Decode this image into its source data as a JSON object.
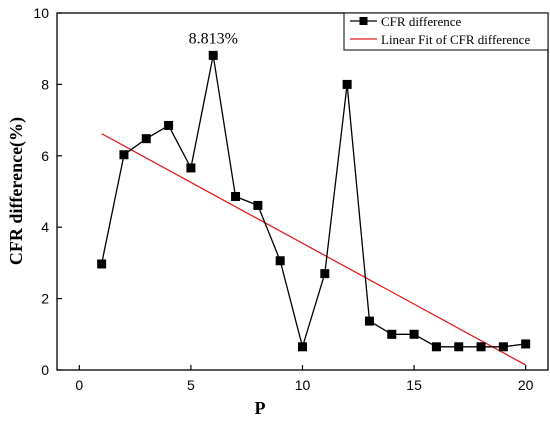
{
  "chart_data": {
    "type": "line",
    "xlabel": "P",
    "ylabel": "CFR difference(%)",
    "xlim": [
      -1,
      21
    ],
    "ylim": [
      0,
      10
    ],
    "xticks": [
      0,
      5,
      10,
      15,
      20
    ],
    "yticks": [
      0,
      2,
      4,
      6,
      8,
      10
    ],
    "x_tick_labels": [
      "0",
      "5",
      "10",
      "15",
      "20"
    ],
    "y_tick_labels": [
      "0",
      "2",
      "4",
      "6",
      "8",
      "10"
    ],
    "grid": false,
    "legend_position": "top-right",
    "series": [
      {
        "name": "CFR difference",
        "type": "line-marker",
        "color": "#000000",
        "marker": "square",
        "x": [
          1,
          2,
          3,
          4,
          5,
          6,
          7,
          8,
          9,
          10,
          11,
          12,
          13,
          14,
          15,
          16,
          17,
          18,
          19,
          20
        ],
        "y": [
          2.97,
          6.03,
          6.48,
          6.85,
          5.66,
          8.813,
          4.86,
          4.61,
          3.06,
          0.65,
          2.7,
          8.0,
          1.37,
          1.0,
          1.0,
          0.65,
          0.65,
          0.65,
          0.65,
          0.73
        ]
      },
      {
        "name": "Linear Fit of CFR difference",
        "type": "fit-line",
        "color": "#e52020",
        "x": [
          1,
          20
        ],
        "y": [
          6.62,
          0.14
        ]
      }
    ],
    "annotations": [
      {
        "text": "8.813%",
        "x": 6,
        "y": 8.813
      }
    ]
  }
}
